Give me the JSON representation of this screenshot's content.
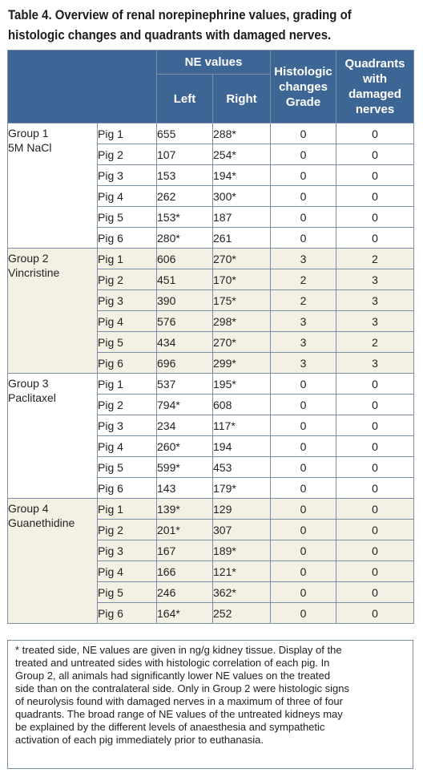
{
  "title": {
    "line1": "Table 4. Overview of renal norepinephrine values, grading of",
    "line2": "histologic changes and quadrants with damaged nerves."
  },
  "header": {
    "ne_values": "NE values",
    "left": "Left",
    "right": "Right",
    "histologic": [
      "Histologic",
      "changes",
      "Grade"
    ],
    "quadrants": [
      "Quadrants",
      "with",
      "damaged",
      "nerves"
    ]
  },
  "groups": [
    {
      "name": [
        "Group 1",
        "5M NaCl"
      ],
      "rows": [
        {
          "pig": "Pig 1",
          "left": "655",
          "right": "288*",
          "grade": "0",
          "quadrants": "0"
        },
        {
          "pig": "Pig 2",
          "left": "107",
          "right": "254*",
          "grade": "0",
          "quadrants": "0"
        },
        {
          "pig": "Pig 3",
          "left": "153",
          "right": "194*",
          "grade": "0",
          "quadrants": "0"
        },
        {
          "pig": "Pig 4",
          "left": "262",
          "right": "300*",
          "grade": "0",
          "quadrants": "0"
        },
        {
          "pig": "Pig 5",
          "left": "153*",
          "right": "187",
          "grade": "0",
          "quadrants": "0"
        },
        {
          "pig": "Pig 6",
          "left": "280*",
          "right": "261",
          "grade": "0",
          "quadrants": "0"
        }
      ]
    },
    {
      "name": [
        "Group 2",
        "Vincristine"
      ],
      "rows": [
        {
          "pig": "Pig 1",
          "left": "606",
          "right": "270*",
          "grade": "3",
          "quadrants": "2"
        },
        {
          "pig": "Pig 2",
          "left": "451",
          "right": "170*",
          "grade": "2",
          "quadrants": "3"
        },
        {
          "pig": "Pig 3",
          "left": "390",
          "right": "175*",
          "grade": "2",
          "quadrants": "3"
        },
        {
          "pig": "Pig 4",
          "left": "576",
          "right": "298*",
          "grade": "3",
          "quadrants": "3"
        },
        {
          "pig": "Pig 5",
          "left": "434",
          "right": "270*",
          "grade": "3",
          "quadrants": "2"
        },
        {
          "pig": "Pig 6",
          "left": "696",
          "right": "299*",
          "grade": "3",
          "quadrants": "3"
        }
      ]
    },
    {
      "name": [
        "Group 3",
        "Paclitaxel"
      ],
      "rows": [
        {
          "pig": "Pig 1",
          "left": "537",
          "right": "195*",
          "grade": "0",
          "quadrants": "0"
        },
        {
          "pig": "Pig 2",
          "left": "794*",
          "right": "608",
          "grade": "0",
          "quadrants": "0"
        },
        {
          "pig": "Pig 3",
          "left": "234",
          "right": "117*",
          "grade": "0",
          "quadrants": "0"
        },
        {
          "pig": "Pig 4",
          "left": "260*",
          "right": "194",
          "grade": "0",
          "quadrants": "0"
        },
        {
          "pig": "Pig 5",
          "left": "599*",
          "right": "453",
          "grade": "0",
          "quadrants": "0"
        },
        {
          "pig": "Pig 6",
          "left": "143",
          "right": "179*",
          "grade": "0",
          "quadrants": "0"
        }
      ]
    },
    {
      "name": [
        "Group 4",
        "Guanethidine"
      ],
      "rows": [
        {
          "pig": "Pig 1",
          "left": "139*",
          "right": "129",
          "grade": "0",
          "quadrants": "0"
        },
        {
          "pig": "Pig 2",
          "left": "201*",
          "right": "307",
          "grade": "0",
          "quadrants": "0"
        },
        {
          "pig": "Pig 3",
          "left": "167",
          "right": "189*",
          "grade": "0",
          "quadrants": "0"
        },
        {
          "pig": "Pig 4",
          "left": "166",
          "right": "121*",
          "grade": "0",
          "quadrants": "0"
        },
        {
          "pig": "Pig 5",
          "left": "246",
          "right": "362*",
          "grade": "0",
          "quadrants": "0"
        },
        {
          "pig": "Pig 6",
          "left": "164*",
          "right": "252",
          "grade": "0",
          "quadrants": "0"
        }
      ]
    }
  ],
  "footnote": [
    "* treated side, NE values are given in ng/g kidney tissue. Display of the",
    "treated and untreated sides with histologic correlation of each pig. In",
    "Group 2, all animals had significantly lower NE values on the treated",
    "side than on the contralateral side. Only in Group 2 were histologic signs",
    "of neurolysis found with damaged nerves in a maximum of three of four",
    "quadrants. The broad range of NE values of the untreated kidneys may",
    "be explained by the different levels of anaesthesia and sympathetic",
    "activation of each pig immediately prior to euthanasia."
  ]
}
